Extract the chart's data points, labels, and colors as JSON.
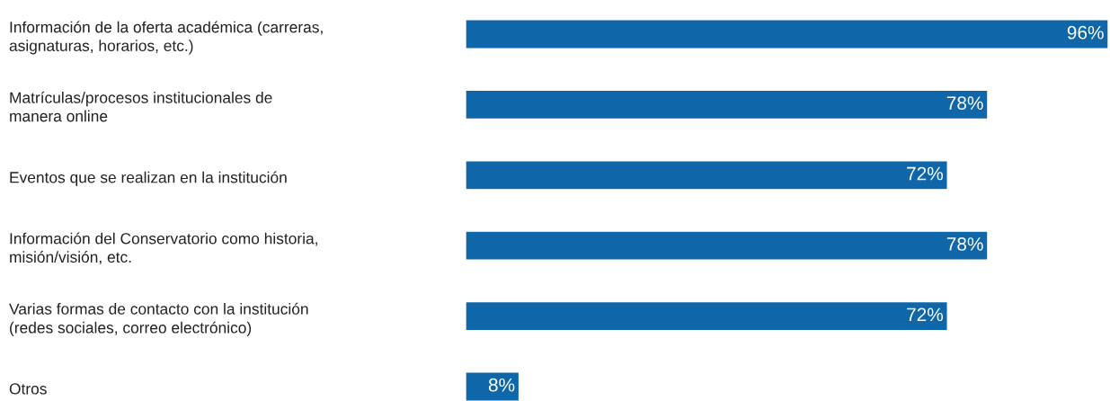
{
  "chart_data": {
    "type": "bar",
    "orientation": "horizontal",
    "data_labels": true,
    "categories": [
      "Información de la oferta académica (carreras,\nasignaturas, horarios, etc.)",
      "Matrículas/procesos institucionales de\nmanera online",
      "Eventos que se realizan en la institución",
      "Información del Conservatorio como historia,\nmisión/visión, etc.",
      "Varias formas de contacto con la institución\n(redes sociales, correo electrónico)",
      "Otros"
    ],
    "values": [
      96,
      78,
      72,
      78,
      72,
      8
    ],
    "value_labels": [
      "96%",
      "78%",
      "72%",
      "78%",
      "72%",
      "8%"
    ],
    "color": "#0f67a9"
  }
}
